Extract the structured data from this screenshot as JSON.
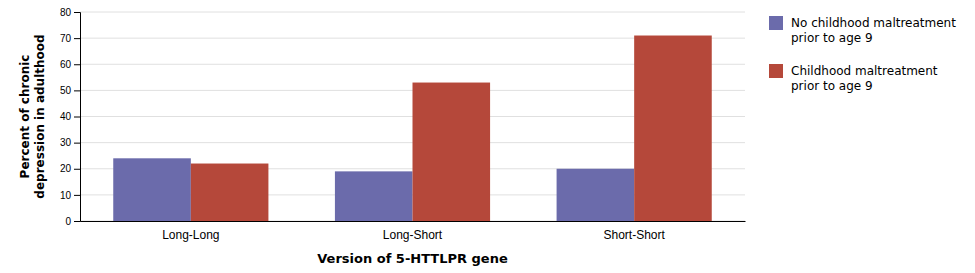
{
  "chart_data": {
    "type": "bar",
    "categories": [
      "Long-Long",
      "Long-Short",
      "Short-Short"
    ],
    "series": [
      {
        "name": "No childhood maltreatment\nprior to age 9",
        "color": "#6b6bab",
        "values": [
          24,
          19,
          20
        ]
      },
      {
        "name": "Childhood maltreatment\nprior to age 9",
        "color": "#b5483a",
        "values": [
          22,
          53,
          71
        ]
      }
    ],
    "xlabel": "Version of 5-HTTLPR gene",
    "ylabel": "Percent of chronic\ndepression in adulthood",
    "ylim": [
      0,
      80
    ],
    "yticks": [
      0,
      10,
      20,
      30,
      40,
      50,
      60,
      70,
      80
    ],
    "grid": true,
    "legend": "right"
  }
}
